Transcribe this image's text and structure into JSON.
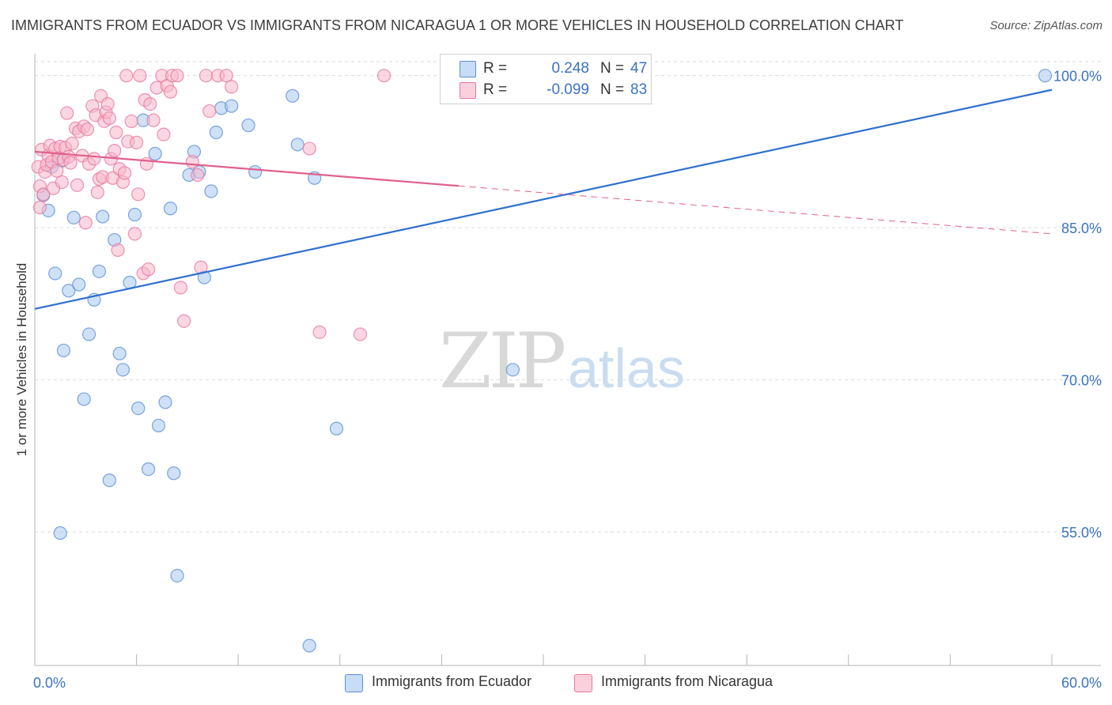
{
  "title": "IMMIGRANTS FROM ECUADOR VS IMMIGRANTS FROM NICARAGUA 1 OR MORE VEHICLES IN HOUSEHOLD CORRELATION CHART",
  "source": "Source: ZipAtlas.com",
  "watermark": {
    "zip": "ZIP",
    "atlas": "atlas"
  },
  "legend": {
    "rows": [
      {
        "r_label": "R =",
        "r_value": "0.248",
        "n_label": "N =",
        "n_value": "47",
        "color": "#a8c8f0"
      },
      {
        "r_label": "R =",
        "r_value": "-0.099",
        "n_label": "N =",
        "n_value": "83",
        "color": "#f7b6ca"
      }
    ]
  },
  "colors": {
    "ecuador_fill": "#a8c8f0",
    "ecuador_stroke": "#5b8fd6",
    "ecuador_line": "#2f6fcf",
    "nicaragua_fill": "#f7b6ca",
    "nicaragua_stroke": "#e8789d",
    "nicaragua_line": "#e0608a",
    "grid": "#d9d9d9",
    "axis_label": "#3a72c6"
  },
  "chart_data": {
    "type": "scatter",
    "title": "IMMIGRANTS FROM ECUADOR VS IMMIGRANTS FROM NICARAGUA 1 OR MORE VEHICLES IN HOUSEHOLD CORRELATION CHART",
    "xlabel": "",
    "ylabel": "1 or more Vehicles in Household",
    "xlim": [
      0,
      60
    ],
    "ylim": [
      42,
      102
    ],
    "x_tick_labels": [
      "0.0%",
      "60.0%"
    ],
    "x_ticks": [
      0,
      60
    ],
    "y_ticks": [
      55,
      70,
      85,
      100
    ],
    "y_tick_labels": [
      "55.0%",
      "70.0%",
      "85.0%",
      "100.0%"
    ],
    "series": [
      {
        "name": "Immigrants from Ecuador",
        "r": 0.248,
        "n": 47,
        "trend": {
          "x": [
            0,
            60
          ],
          "y": [
            77.0,
            98.6
          ],
          "solid_until": 60
        },
        "points": [
          [
            0.5,
            88.2
          ],
          [
            0.8,
            86.7
          ],
          [
            1.2,
            80.5
          ],
          [
            1.5,
            54.9
          ],
          [
            1.7,
            72.9
          ],
          [
            2.0,
            78.8
          ],
          [
            2.3,
            86.0
          ],
          [
            2.6,
            79.4
          ],
          [
            2.9,
            68.1
          ],
          [
            3.2,
            74.5
          ],
          [
            3.5,
            77.9
          ],
          [
            3.8,
            80.7
          ],
          [
            4.0,
            86.1
          ],
          [
            4.4,
            60.1
          ],
          [
            4.7,
            83.8
          ],
          [
            5.0,
            72.6
          ],
          [
            5.2,
            71.0
          ],
          [
            5.6,
            79.6
          ],
          [
            5.9,
            86.3
          ],
          [
            6.1,
            67.2
          ],
          [
            6.4,
            95.6
          ],
          [
            6.7,
            61.2
          ],
          [
            7.1,
            92.3
          ],
          [
            7.3,
            65.5
          ],
          [
            7.7,
            67.8
          ],
          [
            8.0,
            86.9
          ],
          [
            8.2,
            60.8
          ],
          [
            8.4,
            50.7
          ],
          [
            9.1,
            90.2
          ],
          [
            9.4,
            92.5
          ],
          [
            9.7,
            90.5
          ],
          [
            10.0,
            80.1
          ],
          [
            10.4,
            88.6
          ],
          [
            10.7,
            94.4
          ],
          [
            11.0,
            96.8
          ],
          [
            11.6,
            97.0
          ],
          [
            12.6,
            95.1
          ],
          [
            13.0,
            90.5
          ],
          [
            15.2,
            98.0
          ],
          [
            15.5,
            93.2
          ],
          [
            16.2,
            43.8
          ],
          [
            16.5,
            89.9
          ],
          [
            17.8,
            65.2
          ],
          [
            28.2,
            71.0
          ],
          [
            1.0,
            91.0
          ],
          [
            1.6,
            91.6
          ],
          [
            59.6,
            100.0
          ]
        ]
      },
      {
        "name": "Immigrants from Nicaragua",
        "r": -0.099,
        "n": 83,
        "trend": {
          "x": [
            0,
            60
          ],
          "y": [
            92.5,
            84.4
          ],
          "solid_until": 25
        },
        "points": [
          [
            0.2,
            91.0
          ],
          [
            0.3,
            89.1
          ],
          [
            0.4,
            92.7
          ],
          [
            0.5,
            88.3
          ],
          [
            0.6,
            90.5
          ],
          [
            0.7,
            91.2
          ],
          [
            0.8,
            92.1
          ],
          [
            0.9,
            93.1
          ],
          [
            1.0,
            91.5
          ],
          [
            1.1,
            88.9
          ],
          [
            1.2,
            92.8
          ],
          [
            1.3,
            90.6
          ],
          [
            1.4,
            91.9
          ],
          [
            1.5,
            93.0
          ],
          [
            1.6,
            89.5
          ],
          [
            1.7,
            91.7
          ],
          [
            1.8,
            92.9
          ],
          [
            1.9,
            96.3
          ],
          [
            2.0,
            92.0
          ],
          [
            2.1,
            91.4
          ],
          [
            2.2,
            93.3
          ],
          [
            2.4,
            94.8
          ],
          [
            2.5,
            89.2
          ],
          [
            2.6,
            94.5
          ],
          [
            2.8,
            92.1
          ],
          [
            2.9,
            95.0
          ],
          [
            3.0,
            85.5
          ],
          [
            3.1,
            94.7
          ],
          [
            3.2,
            91.3
          ],
          [
            3.4,
            97.0
          ],
          [
            3.5,
            91.8
          ],
          [
            3.6,
            96.1
          ],
          [
            3.7,
            88.5
          ],
          [
            3.8,
            89.8
          ],
          [
            3.9,
            98.0
          ],
          [
            4.0,
            90.0
          ],
          [
            4.1,
            95.5
          ],
          [
            4.2,
            96.4
          ],
          [
            4.3,
            97.2
          ],
          [
            4.4,
            95.8
          ],
          [
            4.5,
            91.8
          ],
          [
            4.6,
            89.9
          ],
          [
            4.7,
            92.6
          ],
          [
            4.8,
            94.4
          ],
          [
            4.9,
            82.8
          ],
          [
            5.0,
            90.8
          ],
          [
            5.2,
            89.5
          ],
          [
            5.3,
            90.4
          ],
          [
            5.5,
            93.5
          ],
          [
            5.7,
            95.5
          ],
          [
            5.9,
            84.4
          ],
          [
            6.0,
            93.4
          ],
          [
            6.1,
            88.3
          ],
          [
            6.2,
            100.0
          ],
          [
            6.4,
            80.5
          ],
          [
            6.5,
            97.6
          ],
          [
            6.6,
            91.3
          ],
          [
            6.7,
            80.9
          ],
          [
            6.8,
            97.2
          ],
          [
            7.0,
            95.6
          ],
          [
            7.2,
            98.8
          ],
          [
            7.5,
            100.0
          ],
          [
            7.6,
            94.2
          ],
          [
            7.8,
            99.0
          ],
          [
            8.0,
            98.4
          ],
          [
            8.1,
            100.0
          ],
          [
            8.4,
            100.0
          ],
          [
            8.6,
            79.1
          ],
          [
            8.8,
            75.8
          ],
          [
            9.3,
            91.5
          ],
          [
            9.6,
            90.2
          ],
          [
            9.8,
            81.1
          ],
          [
            10.1,
            100.0
          ],
          [
            10.3,
            96.5
          ],
          [
            10.8,
            100.0
          ],
          [
            11.3,
            100.0
          ],
          [
            11.6,
            98.9
          ],
          [
            16.2,
            92.8
          ],
          [
            16.8,
            74.7
          ],
          [
            19.2,
            74.5
          ],
          [
            20.6,
            100.0
          ],
          [
            5.4,
            100.0
          ],
          [
            0.3,
            87.0
          ]
        ]
      }
    ]
  },
  "bottom_legend": [
    {
      "label": "Immigrants from Ecuador"
    },
    {
      "label": "Immigrants from Nicaragua"
    }
  ]
}
